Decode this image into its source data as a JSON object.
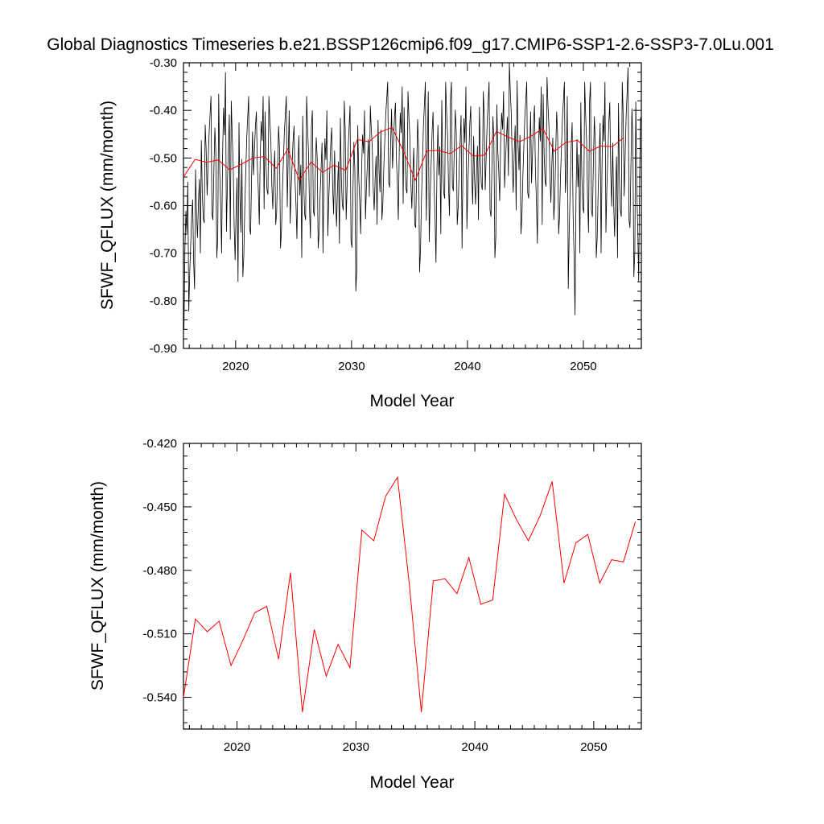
{
  "title": "Global Diagnostics Timeseries b.e21.BSSP126cmip6.f09_g17.CMIP6-SSP1-2.6-SSP3-7.0Lu.001",
  "colors": {
    "monthly": "#000000",
    "annual": "#ff0000"
  },
  "chart_data": [
    {
      "type": "line",
      "xlabel": "Model Year",
      "ylabel": "SFWF_QFLUX (mm/month)",
      "xlim": [
        2015.5,
        2055
      ],
      "ylim": [
        -0.9,
        -0.3
      ],
      "xticks": [
        2020,
        2030,
        2040,
        2050
      ],
      "xtick_labels": [
        "2020",
        "2030",
        "2040",
        "2050"
      ],
      "yticks": [
        -0.9,
        -0.8,
        -0.7,
        -0.6,
        -0.5,
        -0.4,
        -0.3
      ],
      "ytick_labels": [
        "-0.90",
        "-0.80",
        "-0.70",
        "-0.60",
        "-0.50",
        "-0.40",
        "-0.30"
      ],
      "grid": false,
      "monthly": {
        "color": "#000000",
        "x_start": 2015.54,
        "dx": 0.0833,
        "envelope": [
          [
            2015.5,
            -0.86,
            -0.55
          ],
          [
            2016.5,
            -0.7,
            -0.43
          ],
          [
            2017.5,
            -0.71,
            -0.37
          ],
          [
            2018.5,
            -0.7,
            -0.32
          ],
          [
            2019.5,
            -0.76,
            -0.38
          ],
          [
            2020.5,
            -0.75,
            -0.37
          ],
          [
            2021.5,
            -0.64,
            -0.37
          ],
          [
            2022.5,
            -0.64,
            -0.37
          ],
          [
            2023.5,
            -0.69,
            -0.37
          ],
          [
            2024.5,
            -0.67,
            -0.4
          ],
          [
            2025.5,
            -0.71,
            -0.37
          ],
          [
            2026.5,
            -0.69,
            -0.4
          ],
          [
            2027.5,
            -0.7,
            -0.4
          ],
          [
            2028.5,
            -0.68,
            -0.38
          ],
          [
            2029.5,
            -0.78,
            -0.39
          ],
          [
            2030.5,
            -0.66,
            -0.4
          ],
          [
            2031.5,
            -0.64,
            -0.39
          ],
          [
            2032.5,
            -0.63,
            -0.34
          ],
          [
            2033.5,
            -0.63,
            -0.35
          ],
          [
            2034.5,
            -0.64,
            -0.36
          ],
          [
            2035.5,
            -0.74,
            -0.34
          ],
          [
            2036.5,
            -0.72,
            -0.36
          ],
          [
            2037.5,
            -0.66,
            -0.34
          ],
          [
            2038.5,
            -0.64,
            -0.34
          ],
          [
            2039.5,
            -0.69,
            -0.35
          ],
          [
            2040.5,
            -0.63,
            -0.36
          ],
          [
            2041.5,
            -0.71,
            -0.34
          ],
          [
            2042.5,
            -0.59,
            -0.36
          ],
          [
            2043.5,
            -0.61,
            -0.3
          ],
          [
            2044.5,
            -0.66,
            -0.34
          ],
          [
            2045.5,
            -0.68,
            -0.35
          ],
          [
            2046.5,
            -0.63,
            -0.33
          ],
          [
            2047.5,
            -0.66,
            -0.34
          ],
          [
            2048.5,
            -0.83,
            -0.37
          ],
          [
            2049.5,
            -0.7,
            -0.34
          ],
          [
            2050.5,
            -0.71,
            -0.34
          ],
          [
            2051.5,
            -0.7,
            -0.34
          ],
          [
            2052.5,
            -0.71,
            -0.34
          ],
          [
            2053.5,
            -0.75,
            -0.31
          ],
          [
            2054.5,
            -0.76,
            -0.33
          ]
        ]
      },
      "annual": {
        "color": "#ff0000",
        "x": [
          2015.5,
          2016.5,
          2017.5,
          2018.5,
          2019.5,
          2020.5,
          2021.5,
          2022.5,
          2023.5,
          2024.5,
          2025.5,
          2026.5,
          2027.5,
          2028.5,
          2029.5,
          2030.5,
          2031.5,
          2032.5,
          2033.5,
          2034.5,
          2035.5,
          2036.5,
          2037.5,
          2038.5,
          2039.5,
          2040.5,
          2041.5,
          2042.5,
          2043.5,
          2044.5,
          2045.5,
          2046.5,
          2047.5,
          2048.5,
          2049.5,
          2050.5,
          2051.5,
          2052.5,
          2053.5
        ],
        "y": [
          -0.54,
          -0.503,
          -0.509,
          -0.504,
          -0.525,
          -0.513,
          -0.5,
          -0.497,
          -0.522,
          -0.481,
          -0.547,
          -0.508,
          -0.53,
          -0.515,
          -0.526,
          -0.461,
          -0.466,
          -0.445,
          -0.436,
          -0.487,
          -0.547,
          -0.485,
          -0.484,
          -0.491,
          -0.474,
          -0.496,
          -0.494,
          -0.444,
          -0.456,
          -0.466,
          -0.454,
          -0.438,
          -0.486,
          -0.467,
          -0.463,
          -0.486,
          -0.475,
          -0.476,
          -0.457
        ]
      }
    },
    {
      "type": "line",
      "xlabel": "Model Year",
      "ylabel": "SFWF_QFLUX (mm/month)",
      "xlim": [
        2015.5,
        2054
      ],
      "ylim": [
        -0.555,
        -0.42
      ],
      "xticks": [
        2020,
        2030,
        2040,
        2050
      ],
      "xtick_labels": [
        "2020",
        "2030",
        "2040",
        "2050"
      ],
      "yticks": [
        -0.54,
        -0.51,
        -0.48,
        -0.45,
        -0.42
      ],
      "ytick_labels": [
        "-0.540",
        "-0.510",
        "-0.480",
        "-0.450",
        "-0.420"
      ],
      "grid": false,
      "annual": {
        "color": "#ff0000",
        "x": [
          2015.5,
          2016.5,
          2017.5,
          2018.5,
          2019.5,
          2020.5,
          2021.5,
          2022.5,
          2023.5,
          2024.5,
          2025.5,
          2026.5,
          2027.5,
          2028.5,
          2029.5,
          2030.5,
          2031.5,
          2032.5,
          2033.5,
          2034.5,
          2035.5,
          2036.5,
          2037.5,
          2038.5,
          2039.5,
          2040.5,
          2041.5,
          2042.5,
          2043.5,
          2044.5,
          2045.5,
          2046.5,
          2047.5,
          2048.5,
          2049.5,
          2050.5,
          2051.5,
          2052.5,
          2053.5
        ],
        "y": [
          -0.54,
          -0.503,
          -0.509,
          -0.504,
          -0.525,
          -0.513,
          -0.5,
          -0.497,
          -0.522,
          -0.481,
          -0.547,
          -0.508,
          -0.53,
          -0.515,
          -0.526,
          -0.461,
          -0.466,
          -0.445,
          -0.436,
          -0.487,
          -0.547,
          -0.485,
          -0.484,
          -0.491,
          -0.474,
          -0.496,
          -0.494,
          -0.444,
          -0.456,
          -0.466,
          -0.454,
          -0.438,
          -0.486,
          -0.467,
          -0.463,
          -0.486,
          -0.475,
          -0.476,
          -0.457
        ]
      }
    }
  ]
}
